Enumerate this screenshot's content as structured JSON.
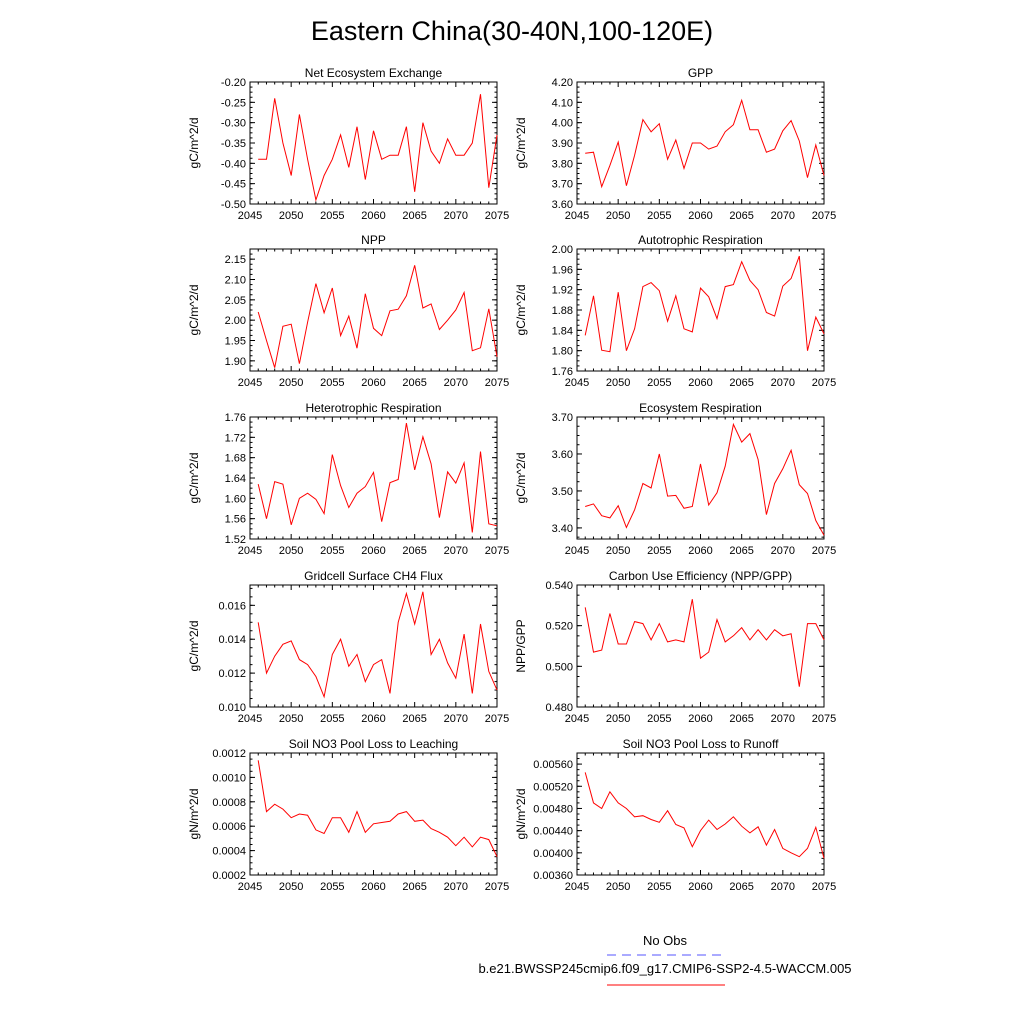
{
  "page_title": "Eastern China(30-40N,100-120E)",
  "legend": {
    "obs_label": "No Obs",
    "obs_color": "#5555ff",
    "model_label": "b.e21.BWSSP245cmip6.f09_g17.CMIP6-SSP2-4.5-WACCM.005",
    "model_color": "#ff0000"
  },
  "chart_data": [
    {
      "type": "line",
      "title": "Net Ecosystem Exchange",
      "ylabel": "gC/m^2/d",
      "xlim": [
        2045,
        2075
      ],
      "ylim": [
        -0.5,
        -0.2
      ],
      "yticks": [
        -0.5,
        -0.45,
        -0.4,
        -0.35,
        -0.3,
        -0.25,
        -0.2
      ],
      "ytick_labels": [
        "-0.50",
        "-0.45",
        "-0.40",
        "-0.35",
        "-0.30",
        "-0.25",
        "-0.20"
      ],
      "xticks": [
        2045,
        2050,
        2055,
        2060,
        2065,
        2070,
        2075
      ],
      "xtick_labels": [
        "2045",
        "2050",
        "2055",
        "2060",
        "2065",
        "2070",
        "2075"
      ],
      "x": [
        2046,
        2047,
        2048,
        2049,
        2050,
        2051,
        2052,
        2053,
        2054,
        2055,
        2056,
        2057,
        2058,
        2059,
        2060,
        2061,
        2062,
        2063,
        2064,
        2065,
        2066,
        2067,
        2068,
        2069,
        2070,
        2071,
        2072,
        2073,
        2074,
        2075
      ],
      "values": [
        -0.39,
        -0.39,
        -0.24,
        -0.35,
        -0.43,
        -0.28,
        -0.39,
        -0.49,
        -0.43,
        -0.39,
        -0.33,
        -0.41,
        -0.31,
        -0.44,
        -0.32,
        -0.39,
        -0.38,
        -0.38,
        -0.31,
        -0.47,
        -0.3,
        -0.37,
        -0.4,
        -0.34,
        -0.38,
        -0.38,
        -0.35,
        -0.23,
        -0.46,
        -0.33
      ]
    },
    {
      "type": "line",
      "title": "GPP",
      "ylabel": "gC/m^2/d",
      "xlim": [
        2045,
        2075
      ],
      "ylim": [
        3.6,
        4.2
      ],
      "yticks": [
        3.6,
        3.7,
        3.8,
        3.9,
        4.0,
        4.1,
        4.2
      ],
      "ytick_labels": [
        "3.60",
        "3.70",
        "3.80",
        "3.90",
        "4.00",
        "4.10",
        "4.20"
      ],
      "xticks": [
        2045,
        2050,
        2055,
        2060,
        2065,
        2070,
        2075
      ],
      "xtick_labels": [
        "2045",
        "2050",
        "2055",
        "2060",
        "2065",
        "2070",
        "2075"
      ],
      "x": [
        2046,
        2047,
        2048,
        2049,
        2050,
        2051,
        2052,
        2053,
        2054,
        2055,
        2056,
        2057,
        2058,
        2059,
        2060,
        2061,
        2062,
        2063,
        2064,
        2065,
        2066,
        2067,
        2068,
        2069,
        2070,
        2071,
        2072,
        2073,
        2074,
        2075
      ],
      "values": [
        3.85,
        3.855,
        3.685,
        3.79,
        3.905,
        3.69,
        3.84,
        4.015,
        3.955,
        3.995,
        3.82,
        3.915,
        3.775,
        3.9,
        3.9,
        3.87,
        3.885,
        3.955,
        3.99,
        4.11,
        3.965,
        3.965,
        3.855,
        3.87,
        3.96,
        4.01,
        3.91,
        3.73,
        3.89,
        3.74
      ]
    },
    {
      "type": "line",
      "title": "NPP",
      "ylabel": "gC/m^2/d",
      "xlim": [
        2045,
        2075
      ],
      "ylim": [
        1.875,
        2.175
      ],
      "yticks": [
        1.9,
        1.95,
        2.0,
        2.05,
        2.1,
        2.15
      ],
      "ytick_labels": [
        "1.90",
        "1.95",
        "2.00",
        "2.05",
        "2.10",
        "2.15"
      ],
      "xticks": [
        2045,
        2050,
        2055,
        2060,
        2065,
        2070,
        2075
      ],
      "xtick_labels": [
        "2045",
        "2050",
        "2055",
        "2060",
        "2065",
        "2070",
        "2075"
      ],
      "x": [
        2046,
        2047,
        2048,
        2049,
        2050,
        2051,
        2052,
        2053,
        2054,
        2055,
        2056,
        2057,
        2058,
        2059,
        2060,
        2061,
        2062,
        2063,
        2064,
        2065,
        2066,
        2067,
        2068,
        2069,
        2070,
        2071,
        2072,
        2073,
        2074,
        2075
      ],
      "values": [
        2.02,
        1.95,
        1.883,
        1.985,
        1.99,
        1.893,
        1.995,
        2.09,
        2.018,
        2.079,
        1.962,
        2.01,
        1.931,
        2.065,
        1.98,
        1.962,
        2.023,
        2.027,
        2.06,
        2.135,
        2.03,
        2.04,
        1.977,
        2.0,
        2.025,
        2.068,
        1.925,
        1.932,
        2.028,
        1.91
      ]
    },
    {
      "type": "line",
      "title": "Autotrophic Respiration",
      "ylabel": "gC/m^2/d",
      "xlim": [
        2045,
        2075
      ],
      "ylim": [
        1.76,
        2.0
      ],
      "yticks": [
        1.76,
        1.8,
        1.84,
        1.88,
        1.92,
        1.96,
        2.0
      ],
      "ytick_labels": [
        "1.76",
        "1.80",
        "1.84",
        "1.88",
        "1.92",
        "1.96",
        "2.00"
      ],
      "xticks": [
        2045,
        2050,
        2055,
        2060,
        2065,
        2070,
        2075
      ],
      "xtick_labels": [
        "2045",
        "2050",
        "2055",
        "2060",
        "2065",
        "2070",
        "2075"
      ],
      "x": [
        2046,
        2047,
        2048,
        2049,
        2050,
        2051,
        2052,
        2053,
        2054,
        2055,
        2056,
        2057,
        2058,
        2059,
        2060,
        2061,
        2062,
        2063,
        2064,
        2065,
        2066,
        2067,
        2068,
        2069,
        2070,
        2071,
        2072,
        2073,
        2074,
        2075
      ],
      "values": [
        1.83,
        1.908,
        1.801,
        1.798,
        1.915,
        1.8,
        1.843,
        1.926,
        1.934,
        1.918,
        1.858,
        1.908,
        1.843,
        1.837,
        1.923,
        1.906,
        1.863,
        1.926,
        1.93,
        1.975,
        1.938,
        1.92,
        1.875,
        1.868,
        1.927,
        1.942,
        1.986,
        1.8,
        1.866,
        1.833
      ]
    },
    {
      "type": "line",
      "title": "Heterotrophic Respiration",
      "ylabel": "gC/m^2/d",
      "xlim": [
        2045,
        2075
      ],
      "ylim": [
        1.52,
        1.76
      ],
      "yticks": [
        1.52,
        1.56,
        1.6,
        1.64,
        1.68,
        1.72,
        1.76
      ],
      "ytick_labels": [
        "1.52",
        "1.56",
        "1.60",
        "1.64",
        "1.68",
        "1.72",
        "1.76"
      ],
      "xticks": [
        2045,
        2050,
        2055,
        2060,
        2065,
        2070,
        2075
      ],
      "xtick_labels": [
        "2045",
        "2050",
        "2055",
        "2060",
        "2065",
        "2070",
        "2075"
      ],
      "x": [
        2046,
        2047,
        2048,
        2049,
        2050,
        2051,
        2052,
        2053,
        2054,
        2055,
        2056,
        2057,
        2058,
        2059,
        2060,
        2061,
        2062,
        2063,
        2064,
        2065,
        2066,
        2067,
        2068,
        2069,
        2070,
        2071,
        2072,
        2073,
        2074,
        2075
      ],
      "values": [
        1.628,
        1.56,
        1.633,
        1.628,
        1.548,
        1.6,
        1.61,
        1.598,
        1.57,
        1.686,
        1.625,
        1.582,
        1.61,
        1.623,
        1.651,
        1.554,
        1.631,
        1.637,
        1.748,
        1.656,
        1.721,
        1.668,
        1.562,
        1.652,
        1.63,
        1.67,
        1.533,
        1.692,
        1.55,
        1.546
      ]
    },
    {
      "type": "line",
      "title": "Ecosystem Respiration",
      "ylabel": "gC/m^2/d",
      "xlim": [
        2045,
        2075
      ],
      "ylim": [
        3.37,
        3.7
      ],
      "yticks": [
        3.4,
        3.5,
        3.6,
        3.7
      ],
      "ytick_labels": [
        "3.40",
        "3.50",
        "3.60",
        "3.70"
      ],
      "xticks": [
        2045,
        2050,
        2055,
        2060,
        2065,
        2070,
        2075
      ],
      "xtick_labels": [
        "2045",
        "2050",
        "2055",
        "2060",
        "2065",
        "2070",
        "2075"
      ],
      "x": [
        2046,
        2047,
        2048,
        2049,
        2050,
        2051,
        2052,
        2053,
        2054,
        2055,
        2056,
        2057,
        2058,
        2059,
        2060,
        2061,
        2062,
        2063,
        2064,
        2065,
        2066,
        2067,
        2068,
        2069,
        2070,
        2071,
        2072,
        2073,
        2074,
        2075
      ],
      "values": [
        3.458,
        3.465,
        3.433,
        3.427,
        3.46,
        3.401,
        3.449,
        3.52,
        3.508,
        3.6,
        3.486,
        3.488,
        3.453,
        3.458,
        3.573,
        3.462,
        3.495,
        3.567,
        3.68,
        3.632,
        3.655,
        3.585,
        3.436,
        3.52,
        3.56,
        3.61,
        3.517,
        3.493,
        3.42,
        3.38
      ]
    },
    {
      "type": "line",
      "title": "Gridcell Surface CH4 Flux",
      "ylabel": "gC/m^2/d",
      "xlim": [
        2045,
        2075
      ],
      "ylim": [
        0.01,
        0.0172
      ],
      "yticks": [
        0.01,
        0.012,
        0.014,
        0.016
      ],
      "ytick_labels": [
        "0.010",
        "0.012",
        "0.014",
        "0.016"
      ],
      "xticks": [
        2045,
        2050,
        2055,
        2060,
        2065,
        2070,
        2075
      ],
      "xtick_labels": [
        "2045",
        "2050",
        "2055",
        "2060",
        "2065",
        "2070",
        "2075"
      ],
      "x": [
        2046,
        2047,
        2048,
        2049,
        2050,
        2051,
        2052,
        2053,
        2054,
        2055,
        2056,
        2057,
        2058,
        2059,
        2060,
        2061,
        2062,
        2063,
        2064,
        2065,
        2066,
        2067,
        2068,
        2069,
        2070,
        2071,
        2072,
        2073,
        2074,
        2075
      ],
      "values": [
        0.015,
        0.012,
        0.013,
        0.0137,
        0.0139,
        0.0128,
        0.0125,
        0.0118,
        0.0106,
        0.0131,
        0.014,
        0.0124,
        0.0131,
        0.0115,
        0.0125,
        0.0128,
        0.0108,
        0.015,
        0.0167,
        0.0149,
        0.0168,
        0.0131,
        0.014,
        0.0126,
        0.0117,
        0.0143,
        0.0108,
        0.0149,
        0.0121,
        0.011
      ]
    },
    {
      "type": "line",
      "title": "Carbon Use Efficiency (NPP/GPP)",
      "ylabel": "NPP/GPP",
      "xlim": [
        2045,
        2075
      ],
      "ylim": [
        0.48,
        0.54
      ],
      "yticks": [
        0.48,
        0.5,
        0.52,
        0.54
      ],
      "ytick_labels": [
        "0.480",
        "0.500",
        "0.520",
        "0.540"
      ],
      "xticks": [
        2045,
        2050,
        2055,
        2060,
        2065,
        2070,
        2075
      ],
      "xtick_labels": [
        "2045",
        "2050",
        "2055",
        "2060",
        "2065",
        "2070",
        "2075"
      ],
      "x": [
        2046,
        2047,
        2048,
        2049,
        2050,
        2051,
        2052,
        2053,
        2054,
        2055,
        2056,
        2057,
        2058,
        2059,
        2060,
        2061,
        2062,
        2063,
        2064,
        2065,
        2066,
        2067,
        2068,
        2069,
        2070,
        2071,
        2072,
        2073,
        2074,
        2075
      ],
      "values": [
        0.529,
        0.507,
        0.508,
        0.526,
        0.511,
        0.511,
        0.522,
        0.521,
        0.513,
        0.521,
        0.512,
        0.513,
        0.512,
        0.533,
        0.504,
        0.507,
        0.523,
        0.512,
        0.515,
        0.519,
        0.513,
        0.518,
        0.513,
        0.518,
        0.515,
        0.516,
        0.49,
        0.521,
        0.521,
        0.513
      ]
    },
    {
      "type": "line",
      "title": "Soil NO3 Pool Loss to Leaching",
      "ylabel": "gN/m^2/d",
      "xlim": [
        2045,
        2075
      ],
      "ylim": [
        0.0002,
        0.0012
      ],
      "yticks": [
        0.0002,
        0.0004,
        0.0006,
        0.0008,
        0.001,
        0.0012
      ],
      "ytick_labels": [
        "0.0002",
        "0.0004",
        "0.0006",
        "0.0008",
        "0.0010",
        "0.0012"
      ],
      "xticks": [
        2045,
        2050,
        2055,
        2060,
        2065,
        2070,
        2075
      ],
      "xtick_labels": [
        "2045",
        "2050",
        "2055",
        "2060",
        "2065",
        "2070",
        "2075"
      ],
      "x": [
        2046,
        2047,
        2048,
        2049,
        2050,
        2051,
        2052,
        2053,
        2054,
        2055,
        2056,
        2057,
        2058,
        2059,
        2060,
        2061,
        2062,
        2063,
        2064,
        2065,
        2066,
        2067,
        2068,
        2069,
        2070,
        2071,
        2072,
        2073,
        2074,
        2075
      ],
      "values": [
        0.00114,
        0.00072,
        0.00078,
        0.00074,
        0.00067,
        0.0007,
        0.00069,
        0.00057,
        0.00054,
        0.00067,
        0.00067,
        0.00055,
        0.00072,
        0.00055,
        0.00062,
        0.00063,
        0.00064,
        0.0007,
        0.00072,
        0.00064,
        0.00065,
        0.00058,
        0.00055,
        0.00051,
        0.00044,
        0.00051,
        0.00043,
        0.00051,
        0.00049,
        0.00035
      ]
    },
    {
      "type": "line",
      "title": "Soil NO3 Pool Loss to Runoff",
      "ylabel": "gN/m^2/d",
      "xlim": [
        2045,
        2075
      ],
      "ylim": [
        0.0036,
        0.0058
      ],
      "yticks": [
        0.0036,
        0.004,
        0.0044,
        0.0048,
        0.0052,
        0.0056
      ],
      "ytick_labels": [
        "0.00360",
        "0.00400",
        "0.00440",
        "0.00480",
        "0.00520",
        "0.00560"
      ],
      "xticks": [
        2045,
        2050,
        2055,
        2060,
        2065,
        2070,
        2075
      ],
      "xtick_labels": [
        "2045",
        "2050",
        "2055",
        "2060",
        "2065",
        "2070",
        "2075"
      ],
      "x": [
        2046,
        2047,
        2048,
        2049,
        2050,
        2051,
        2052,
        2053,
        2054,
        2055,
        2056,
        2057,
        2058,
        2059,
        2060,
        2061,
        2062,
        2063,
        2064,
        2065,
        2066,
        2067,
        2068,
        2069,
        2070,
        2071,
        2072,
        2073,
        2074,
        2075
      ],
      "values": [
        0.00545,
        0.0049,
        0.0048,
        0.0051,
        0.0049,
        0.0048,
        0.00465,
        0.00467,
        0.0046,
        0.00455,
        0.00476,
        0.00451,
        0.00445,
        0.00411,
        0.0044,
        0.00459,
        0.00442,
        0.00452,
        0.00465,
        0.00448,
        0.00436,
        0.00447,
        0.00414,
        0.00442,
        0.00408,
        0.004,
        0.00393,
        0.00408,
        0.00446,
        0.0039
      ]
    }
  ]
}
